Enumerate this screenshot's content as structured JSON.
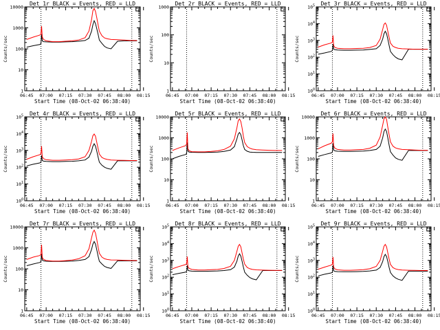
{
  "colors": {
    "events": "#000000",
    "lld": "#ff0000",
    "background": "#ffffff",
    "axes": "#000000"
  },
  "common": {
    "ylabel": "Counts/sec",
    "xlabel": "Start Time (08-Oct-02 06:38:40)",
    "x_ticks": [
      "06:45",
      "07:00",
      "07:15",
      "07:30",
      "07:45",
      "08:00",
      "08:15"
    ],
    "x_range_minutes": [
      -1.5,
      87.5
    ],
    "vlines_minutes": [
      11,
      81
    ]
  },
  "chart_data": [
    {
      "type": "line",
      "title": "Det 1r BLACK = Events, RED = LLD",
      "ylim": [
        1,
        10000
      ],
      "yscale": "log",
      "ytick_style": "plain",
      "series": [
        {
          "name": "Events",
          "x": [
            0,
            5,
            10,
            11,
            11.5,
            12,
            13,
            15,
            20,
            25,
            30,
            35,
            40,
            45,
            48,
            50,
            51,
            52,
            53,
            54,
            55,
            56,
            58,
            60,
            62,
            65,
            70,
            75,
            80,
            85
          ],
          "y": [
            120,
            140,
            160,
            175,
            500,
            240,
            220,
            215,
            210,
            210,
            215,
            220,
            230,
            250,
            320,
            700,
            1400,
            2200,
            1600,
            900,
            500,
            260,
            180,
            130,
            110,
            100,
            230,
            240,
            240,
            240
          ]
        },
        {
          "name": "LLD",
          "x": [
            0,
            5,
            10,
            11,
            11.5,
            12,
            13,
            15,
            20,
            25,
            30,
            35,
            40,
            45,
            48,
            50,
            51,
            52,
            53,
            54,
            55,
            56,
            58,
            60,
            62,
            65,
            70,
            75,
            80,
            85
          ],
          "y": [
            280,
            360,
            450,
            500,
            1200,
            360,
            280,
            240,
            220,
            220,
            230,
            240,
            260,
            340,
            700,
            2500,
            6500,
            8500,
            6000,
            3000,
            1400,
            700,
            420,
            330,
            300,
            280,
            270,
            260,
            250,
            250
          ]
        }
      ]
    },
    {
      "type": "line",
      "title": "Det 2r BLACK = Events, RED = LLD",
      "ylim": [
        1,
        1000
      ],
      "yscale": "log",
      "ytick_style": "plain",
      "series": []
    },
    {
      "type": "line",
      "title": "Det 3r BLACK = Events, RED = LLD",
      "ylim": [
        1,
        100000
      ],
      "yscale": "log",
      "ytick_style": "exp",
      "series": [
        {
          "name": "Events",
          "x": [
            0,
            5,
            10,
            11,
            11.5,
            12,
            13,
            15,
            20,
            25,
            30,
            35,
            40,
            45,
            48,
            50,
            51,
            52,
            53,
            54,
            55,
            56,
            58,
            60,
            62,
            65,
            70,
            75,
            80,
            85
          ],
          "y": [
            150,
            180,
            220,
            250,
            600,
            300,
            280,
            270,
            260,
            260,
            265,
            270,
            290,
            320,
            500,
            1200,
            2500,
            3500,
            2500,
            1200,
            500,
            220,
            140,
            100,
            80,
            70,
            300,
            300,
            300,
            300
          ]
        },
        {
          "name": "LLD",
          "x": [
            0,
            5,
            10,
            11,
            11.5,
            12,
            13,
            15,
            20,
            25,
            30,
            35,
            40,
            45,
            48,
            50,
            51,
            52,
            53,
            54,
            55,
            56,
            58,
            60,
            62,
            65,
            70,
            75,
            80,
            85
          ],
          "y": [
            400,
            550,
            700,
            800,
            2000,
            500,
            380,
            340,
            320,
            320,
            330,
            340,
            380,
            500,
            1200,
            4500,
            9000,
            11000,
            8000,
            3500,
            1500,
            700,
            450,
            380,
            340,
            320,
            310,
            300,
            300,
            300
          ]
        }
      ]
    },
    {
      "type": "line",
      "title": "Det 4r BLACK = Events, RED = LLD",
      "ylim": [
        1,
        100000
      ],
      "yscale": "log",
      "ytick_style": "exp",
      "series": [
        {
          "name": "Events",
          "x": [
            0,
            5,
            10,
            11,
            11.5,
            12,
            13,
            15,
            20,
            25,
            30,
            35,
            40,
            45,
            48,
            50,
            51,
            52,
            53,
            54,
            55,
            56,
            58,
            60,
            62,
            65,
            70,
            75,
            80,
            85
          ],
          "y": [
            120,
            150,
            180,
            200,
            500,
            250,
            230,
            220,
            215,
            215,
            220,
            225,
            240,
            270,
            400,
            900,
            1800,
            2500,
            1800,
            900,
            400,
            200,
            130,
            100,
            85,
            75,
            240,
            240,
            240,
            240
          ]
        },
        {
          "name": "LLD",
          "x": [
            0,
            5,
            10,
            11,
            11.5,
            12,
            13,
            15,
            20,
            25,
            30,
            35,
            40,
            45,
            48,
            50,
            51,
            52,
            53,
            54,
            55,
            56,
            58,
            60,
            62,
            65,
            70,
            75,
            80,
            85
          ],
          "y": [
            300,
            420,
            550,
            650,
            1800,
            420,
            320,
            280,
            260,
            260,
            270,
            280,
            310,
            420,
            1000,
            3500,
            7500,
            9500,
            7000,
            3000,
            1300,
            600,
            380,
            320,
            290,
            270,
            260,
            255,
            250,
            250
          ]
        }
      ]
    },
    {
      "type": "line",
      "title": "Det 5r BLACK = Events, RED = LLD",
      "ylim": [
        1,
        10000
      ],
      "yscale": "log",
      "ytick_style": "plain",
      "series": [
        {
          "name": "Events",
          "x": [
            0,
            5,
            10,
            11,
            11.5,
            12,
            13,
            15,
            20,
            25,
            30,
            35,
            40,
            45,
            48,
            50,
            51,
            52,
            53,
            54,
            55,
            56,
            58,
            60,
            62,
            65,
            70,
            75,
            80,
            85
          ],
          "y": [
            100,
            130,
            160,
            180,
            600,
            230,
            210,
            205,
            200,
            200,
            205,
            210,
            225,
            260,
            380,
            900,
            1500,
            1800,
            1400,
            800,
            420,
            280,
            230,
            210,
            205,
            200,
            200,
            200,
            200,
            200
          ]
        },
        {
          "name": "LLD",
          "x": [
            0,
            5,
            10,
            11,
            11.5,
            12,
            13,
            15,
            20,
            25,
            30,
            35,
            40,
            45,
            48,
            50,
            51,
            52,
            53,
            54,
            55,
            56,
            58,
            60,
            62,
            65,
            70,
            75,
            80,
            85
          ],
          "y": [
            250,
            330,
            420,
            500,
            1800,
            300,
            240,
            220,
            215,
            215,
            225,
            240,
            280,
            400,
            900,
            3000,
            6500,
            8000,
            6000,
            3000,
            1200,
            600,
            380,
            320,
            290,
            270,
            260,
            255,
            250,
            250
          ]
        }
      ]
    },
    {
      "type": "line",
      "title": "Det 6r BLACK = Events, RED = LLD",
      "ylim": [
        1,
        10000
      ],
      "yscale": "log",
      "ytick_style": "plain",
      "series": [
        {
          "name": "Events",
          "x": [
            0,
            5,
            10,
            11,
            11.5,
            12,
            13,
            15,
            20,
            25,
            30,
            35,
            40,
            45,
            48,
            50,
            51,
            52,
            53,
            54,
            55,
            56,
            58,
            60,
            62,
            65,
            70,
            75,
            80,
            85
          ],
          "y": [
            130,
            160,
            190,
            210,
            550,
            260,
            240,
            230,
            225,
            225,
            230,
            235,
            250,
            280,
            400,
            1000,
            2000,
            2600,
            2000,
            1000,
            450,
            220,
            150,
            110,
            95,
            85,
            250,
            250,
            250,
            250
          ]
        },
        {
          "name": "LLD",
          "x": [
            0,
            5,
            10,
            11,
            11.5,
            12,
            13,
            15,
            20,
            25,
            30,
            35,
            40,
            45,
            48,
            50,
            51,
            52,
            53,
            54,
            55,
            56,
            58,
            60,
            62,
            65,
            70,
            75,
            80,
            85
          ],
          "y": [
            300,
            420,
            550,
            650,
            1600,
            420,
            320,
            280,
            260,
            260,
            270,
            280,
            320,
            450,
            1100,
            4000,
            8000,
            10000,
            7500,
            3200,
            1400,
            650,
            400,
            330,
            300,
            280,
            270,
            260,
            255,
            255
          ]
        }
      ]
    },
    {
      "type": "line",
      "title": "Det 7r BLACK = Events, RED = LLD",
      "ylim": [
        1,
        10000
      ],
      "yscale": "log",
      "ytick_style": "plain",
      "series": [
        {
          "name": "Events",
          "x": [
            0,
            5,
            10,
            11,
            11.5,
            12,
            13,
            15,
            20,
            25,
            30,
            35,
            40,
            45,
            48,
            50,
            51,
            52,
            53,
            54,
            55,
            56,
            58,
            60,
            62,
            65,
            70,
            75,
            80,
            85
          ],
          "y": [
            140,
            170,
            200,
            220,
            520,
            260,
            240,
            230,
            225,
            225,
            230,
            235,
            250,
            280,
            380,
            850,
            1500,
            2000,
            1500,
            800,
            400,
            230,
            170,
            130,
            115,
            105,
            240,
            240,
            240,
            240
          ]
        },
        {
          "name": "LLD",
          "x": [
            0,
            5,
            10,
            11,
            11.5,
            12,
            13,
            15,
            20,
            25,
            30,
            35,
            40,
            45,
            48,
            50,
            51,
            52,
            53,
            54,
            55,
            56,
            58,
            60,
            62,
            65,
            70,
            75,
            80,
            85
          ],
          "y": [
            280,
            360,
            430,
            480,
            1400,
            350,
            280,
            250,
            235,
            235,
            245,
            260,
            300,
            420,
            900,
            3000,
            5500,
            7000,
            5000,
            2500,
            1100,
            550,
            360,
            300,
            280,
            265,
            260,
            255,
            250,
            250
          ]
        }
      ]
    },
    {
      "type": "line",
      "title": "Det 8r BLACK = Events, RED = LLD",
      "ylim": [
        1,
        100000
      ],
      "yscale": "log",
      "ytick_style": "exp",
      "series": [
        {
          "name": "Events",
          "x": [
            0,
            5,
            10,
            11,
            11.5,
            12,
            13,
            15,
            20,
            25,
            30,
            35,
            40,
            45,
            48,
            50,
            51,
            52,
            53,
            54,
            55,
            56,
            58,
            60,
            62,
            65,
            70,
            75,
            80,
            85
          ],
          "y": [
            140,
            170,
            200,
            220,
            500,
            260,
            240,
            230,
            225,
            225,
            230,
            235,
            250,
            280,
            400,
            900,
            1800,
            2500,
            1800,
            900,
            400,
            200,
            130,
            95,
            80,
            70,
            250,
            250,
            250,
            250
          ]
        },
        {
          "name": "LLD",
          "x": [
            0,
            5,
            10,
            11,
            11.5,
            12,
            13,
            15,
            20,
            25,
            30,
            35,
            40,
            45,
            48,
            50,
            51,
            52,
            53,
            54,
            55,
            56,
            58,
            60,
            62,
            65,
            70,
            75,
            80,
            85
          ],
          "y": [
            320,
            430,
            560,
            650,
            1700,
            430,
            330,
            290,
            270,
            270,
            280,
            290,
            330,
            450,
            1000,
            3500,
            7000,
            9000,
            6500,
            2800,
            1200,
            600,
            380,
            320,
            290,
            275,
            265,
            260,
            255,
            255
          ]
        }
      ]
    },
    {
      "type": "line",
      "title": "Det 9r BLACK = Events, RED = LLD",
      "ylim": [
        1,
        100000
      ],
      "yscale": "log",
      "ytick_style": "exp",
      "series": [
        {
          "name": "Events",
          "x": [
            0,
            5,
            10,
            11,
            11.5,
            12,
            13,
            15,
            20,
            25,
            30,
            35,
            40,
            45,
            48,
            50,
            51,
            52,
            53,
            54,
            55,
            56,
            58,
            60,
            62,
            65,
            70,
            75,
            80,
            85
          ],
          "y": [
            120,
            150,
            180,
            200,
            500,
            240,
            220,
            215,
            210,
            210,
            215,
            220,
            235,
            265,
            380,
            850,
            1700,
            2300,
            1700,
            850,
            380,
            190,
            120,
            90,
            75,
            65,
            230,
            230,
            230,
            230
          ]
        },
        {
          "name": "LLD",
          "x": [
            0,
            5,
            10,
            11,
            11.5,
            12,
            13,
            15,
            20,
            25,
            30,
            35,
            40,
            45,
            48,
            50,
            51,
            52,
            53,
            54,
            55,
            56,
            58,
            60,
            62,
            65,
            70,
            75,
            80,
            85
          ],
          "y": [
            300,
            400,
            520,
            600,
            1600,
            400,
            310,
            275,
            260,
            260,
            270,
            280,
            320,
            440,
            1000,
            3500,
            7000,
            9000,
            6500,
            2800,
            1200,
            580,
            370,
            310,
            285,
            270,
            260,
            255,
            250,
            250
          ]
        }
      ]
    }
  ]
}
